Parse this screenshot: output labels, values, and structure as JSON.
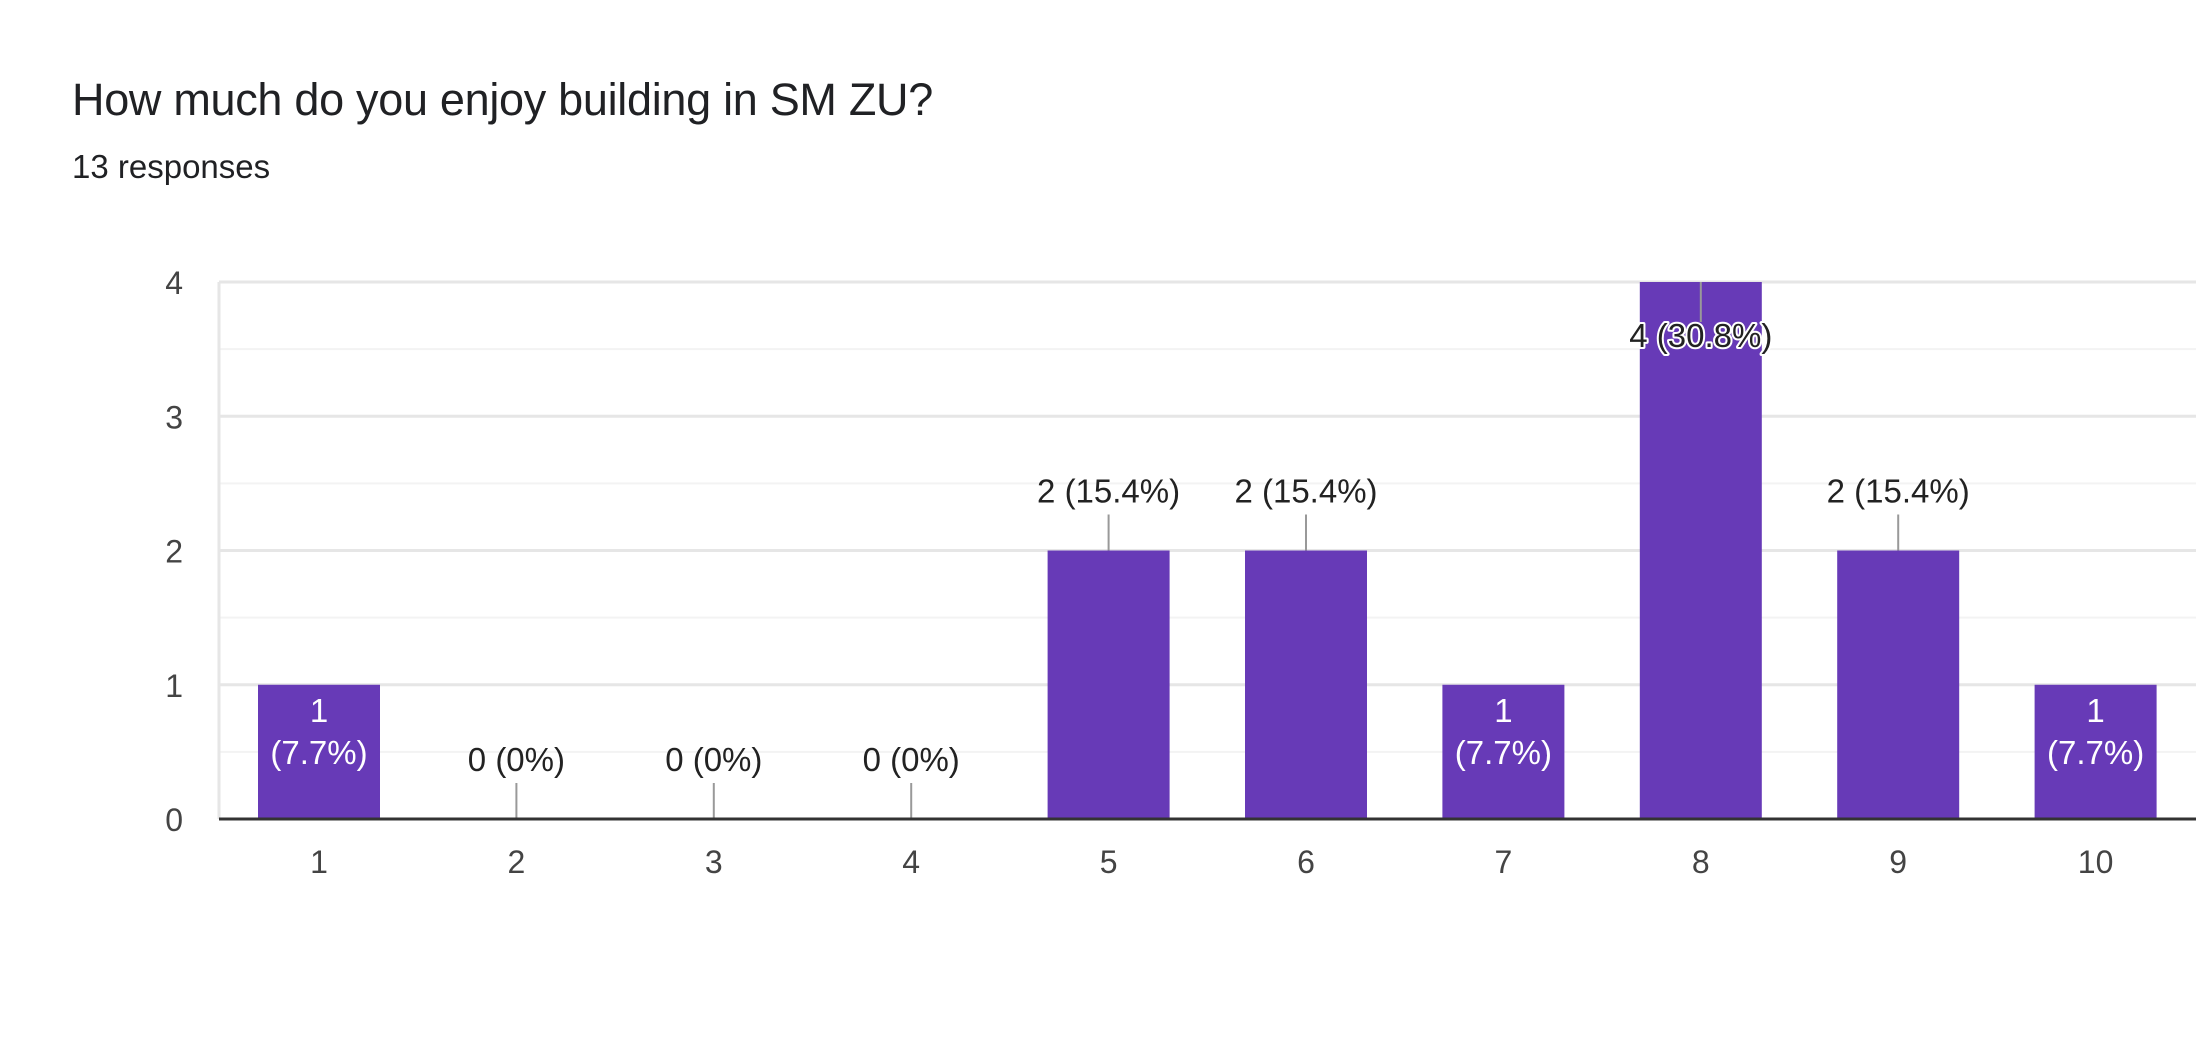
{
  "question": {
    "title": "How much do you enjoy building in SM ZU?",
    "responses_label": "13 responses"
  },
  "colors": {
    "bar": "#673ab7",
    "grid_major": "#e6e6e6",
    "grid_minor": "#f3f3f3",
    "baseline": "#333333",
    "tick_text": "#444444",
    "label_text": "#222222",
    "label_inside_text": "#ffffff",
    "leader_line": "#999999"
  },
  "chart_data": {
    "type": "bar",
    "categories": [
      "1",
      "2",
      "3",
      "4",
      "5",
      "6",
      "7",
      "8",
      "9",
      "10"
    ],
    "values": [
      1,
      0,
      0,
      0,
      2,
      2,
      1,
      4,
      2,
      1
    ],
    "data_labels": [
      "1 (7.7%)",
      "0 (0%)",
      "0 (0%)",
      "0 (0%)",
      "2 (15.4%)",
      "2 (15.4%)",
      "1 (7.7%)",
      "4 (30.8%)",
      "2 (15.4%)",
      "1 (7.7%)"
    ],
    "ylim": [
      0,
      4
    ],
    "yticks": [
      0,
      1,
      2,
      3,
      4
    ],
    "grid": true,
    "xlabel": "",
    "ylabel": ""
  }
}
